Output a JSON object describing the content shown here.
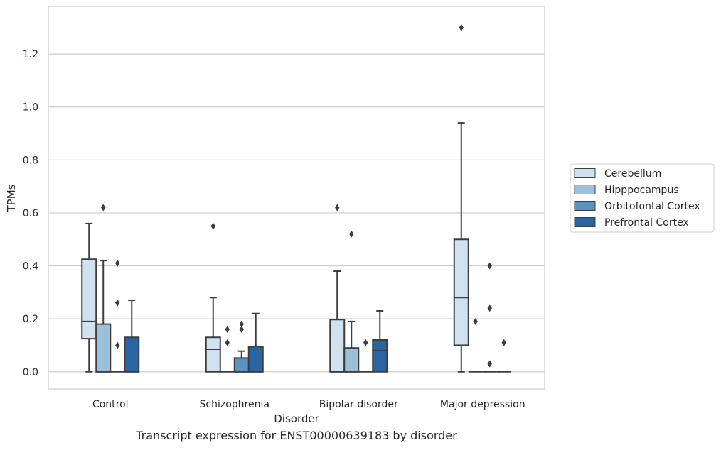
{
  "caption": "Transcript expression for ENST00000639183 by disorder",
  "chart_data": {
    "type": "box",
    "xlabel": "Disorder",
    "ylabel": "TPMs",
    "ylim": [
      -0.065,
      1.38
    ],
    "yticks": [
      0.0,
      0.2,
      0.4,
      0.6,
      0.8,
      1.0,
      1.2
    ],
    "grid": "horizontal",
    "legend_position": "right",
    "categories": [
      "Control",
      "Schizophrenia",
      "Bipolar disorder",
      "Major depression"
    ],
    "series": [
      {
        "name": "Cerebellum",
        "color": "#d0e1f0",
        "boxes": [
          {
            "whisker_low": 0.0,
            "q1": 0.125,
            "median": 0.19,
            "q3": 0.425,
            "whisker_high": 0.56,
            "outliers": []
          },
          {
            "whisker_low": 0.0,
            "q1": 0.0,
            "median": 0.085,
            "q3": 0.13,
            "whisker_high": 0.28,
            "outliers": [
              0.55
            ]
          },
          {
            "whisker_low": 0.0,
            "q1": 0.0,
            "median": 0.0,
            "q3": 0.197,
            "whisker_high": 0.38,
            "outliers": [
              0.62
            ]
          },
          {
            "whisker_low": 0.0,
            "q1": 0.1,
            "median": 0.28,
            "q3": 0.5,
            "whisker_high": 0.94,
            "outliers": [
              1.3
            ]
          }
        ]
      },
      {
        "name": "Hipppocampus",
        "color": "#9bc1d9",
        "boxes": [
          {
            "whisker_low": 0.0,
            "q1": 0.0,
            "median": 0.0,
            "q3": 0.18,
            "whisker_high": 0.42,
            "outliers": [
              0.62
            ]
          },
          {
            "whisker_low": 0.0,
            "q1": 0.0,
            "median": 0.0,
            "q3": 0.0,
            "whisker_high": 0.0,
            "outliers": [
              0.11,
              0.16
            ]
          },
          {
            "whisker_low": 0.0,
            "q1": 0.0,
            "median": 0.0,
            "q3": 0.09,
            "whisker_high": 0.19,
            "outliers": [
              0.52
            ]
          },
          {
            "whisker_low": 0.0,
            "q1": 0.0,
            "median": 0.0,
            "q3": 0.0,
            "whisker_high": 0.0,
            "outliers": [
              0.19
            ]
          }
        ]
      },
      {
        "name": "Orbitofontal Cortex",
        "color": "#5a93c1",
        "boxes": [
          {
            "whisker_low": 0.0,
            "q1": 0.0,
            "median": 0.0,
            "q3": 0.0,
            "whisker_high": 0.0,
            "outliers": [
              0.1,
              0.26,
              0.41
            ]
          },
          {
            "whisker_low": 0.0,
            "q1": 0.0,
            "median": 0.0,
            "q3": 0.052,
            "whisker_high": 0.078,
            "outliers": [
              0.16,
              0.18
            ]
          },
          {
            "whisker_low": 0.0,
            "q1": 0.0,
            "median": 0.0,
            "q3": 0.0,
            "whisker_high": 0.0,
            "outliers": [
              0.11
            ]
          },
          {
            "whisker_low": 0.0,
            "q1": 0.0,
            "median": 0.0,
            "q3": 0.0,
            "whisker_high": 0.0,
            "outliers": [
              0.03,
              0.24,
              0.4
            ]
          }
        ]
      },
      {
        "name": "Prefrontal Cortex",
        "color": "#2a65a3",
        "boxes": [
          {
            "whisker_low": 0.0,
            "q1": 0.0,
            "median": 0.0,
            "q3": 0.13,
            "whisker_high": 0.27,
            "outliers": []
          },
          {
            "whisker_low": 0.0,
            "q1": 0.0,
            "median": 0.0,
            "q3": 0.095,
            "whisker_high": 0.22,
            "outliers": []
          },
          {
            "whisker_low": 0.0,
            "q1": 0.0,
            "median": 0.08,
            "q3": 0.12,
            "whisker_high": 0.23,
            "outliers": []
          },
          {
            "whisker_low": 0.0,
            "q1": 0.0,
            "median": 0.0,
            "q3": 0.0,
            "whisker_high": 0.0,
            "outliers": [
              0.11
            ]
          }
        ]
      }
    ]
  }
}
